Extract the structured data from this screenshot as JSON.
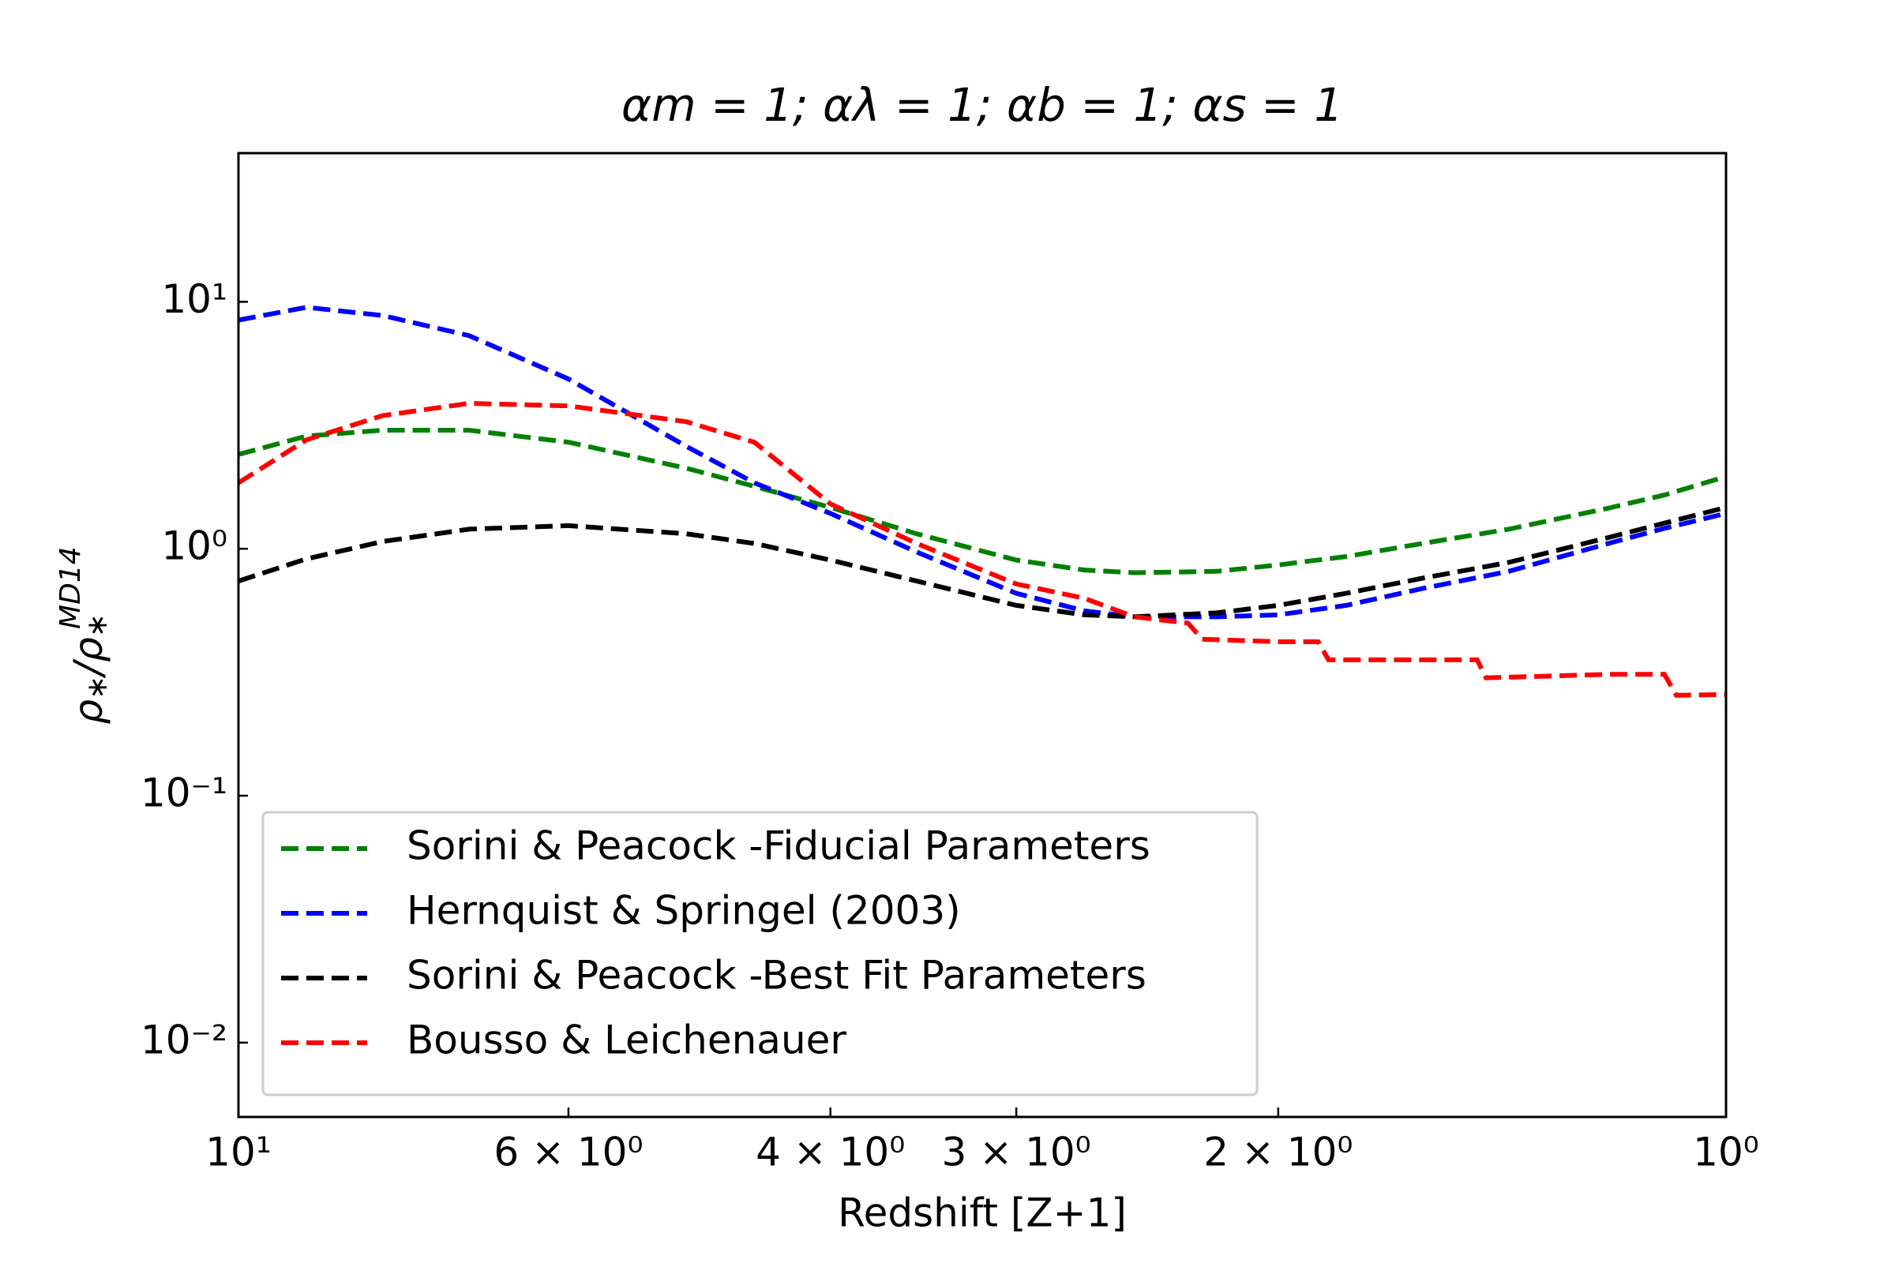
{
  "chart_data": {
    "type": "line",
    "title": "αm = 1; αλ = 1; αb = 1; αs = 1",
    "x_label": "Redshift [Z+1]",
    "y_label": [
      "ρ",
      "∗",
      "/ρ",
      "∗",
      "MD14"
    ],
    "x_scale": "log",
    "y_scale": "log",
    "xlim": [
      10,
      1
    ],
    "ylim": [
      0.005,
      40
    ],
    "xticks": [
      {
        "value": 10,
        "label": "10¹"
      },
      {
        "value": 6,
        "label": "6 × 10⁰"
      },
      {
        "value": 4,
        "label": "4 × 10⁰"
      },
      {
        "value": 3,
        "label": "3 × 10⁰"
      },
      {
        "value": 2,
        "label": "2 × 10⁰"
      },
      {
        "value": 1,
        "label": "10⁰"
      }
    ],
    "yticks": [
      {
        "value": 10,
        "label": "10¹"
      },
      {
        "value": 1,
        "label": "10⁰"
      },
      {
        "value": 0.1,
        "label": "10⁻¹"
      },
      {
        "value": 0.01,
        "label": "10⁻²"
      }
    ],
    "legend": "lower left",
    "x": [
      10,
      9,
      8,
      7,
      6,
      5,
      4.5,
      4,
      3.5,
      3,
      2.7,
      2.5,
      2.2,
      2,
      1.8,
      1.6,
      1.4,
      1.2,
      1.1,
      1
    ],
    "series": [
      {
        "name": "Sorini & Peacock -Fiducial Parameters",
        "color": "#008000",
        "values": [
          2.41,
          2.86,
          3.02,
          3.02,
          2.7,
          2.12,
          1.79,
          1.47,
          1.15,
          0.9,
          0.82,
          0.8,
          0.81,
          0.86,
          0.93,
          1.05,
          1.2,
          1.46,
          1.65,
          1.96
        ]
      },
      {
        "name": "Hernquist & Springel (2003)",
        "color": "#0000ff",
        "values": [
          8.43,
          9.5,
          8.8,
          7.3,
          4.87,
          2.6,
          1.85,
          1.39,
          0.97,
          0.66,
          0.56,
          0.53,
          0.53,
          0.54,
          0.59,
          0.69,
          0.81,
          1.05,
          1.21,
          1.39
        ]
      },
      {
        "name": "Sorini & Peacock -Best Fit Parameters",
        "color": "#000000",
        "values": [
          0.74,
          0.91,
          1.07,
          1.2,
          1.24,
          1.15,
          1.05,
          0.9,
          0.74,
          0.59,
          0.54,
          0.53,
          0.55,
          0.59,
          0.66,
          0.76,
          0.88,
          1.11,
          1.27,
          1.47
        ]
      },
      {
        "name": "Bousso & Leichenauer",
        "color": "#ff0000",
        "x": [
          10,
          9,
          8,
          7,
          6,
          5,
          4.5,
          4,
          3.5,
          3,
          2.7,
          2.5,
          2.3,
          2.25,
          2,
          1.88,
          1.85,
          1.6,
          1.47,
          1.45,
          1.2,
          1.1,
          1.08,
          1
        ],
        "values": [
          1.85,
          2.76,
          3.46,
          3.88,
          3.79,
          3.27,
          2.7,
          1.52,
          1.05,
          0.72,
          0.63,
          0.53,
          0.5,
          0.43,
          0.42,
          0.42,
          0.355,
          0.355,
          0.355,
          0.3,
          0.31,
          0.31,
          0.255,
          0.257
        ]
      }
    ]
  }
}
